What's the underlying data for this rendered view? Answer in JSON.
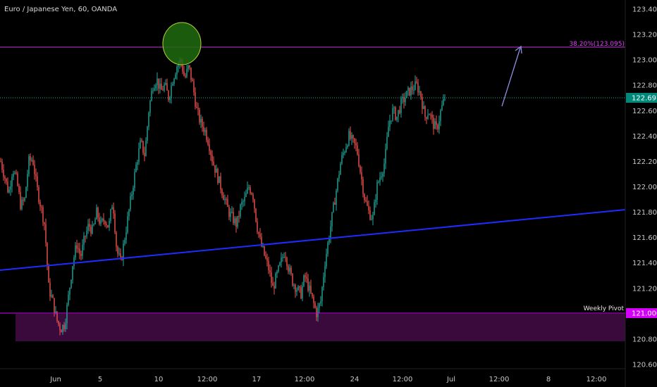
{
  "header": {
    "title": "Euro / Japanese Yen, 60, OANDA"
  },
  "colors": {
    "background": "#000000",
    "candle_up": "#26a69a",
    "candle_down": "#ef5350",
    "fib_line": "#c23ad6",
    "fib_label": "#e040fb",
    "dotted_line": "#26a69a",
    "trend_line": "#1f2bff",
    "pivot_line": "#d500f9",
    "pivot_zone": "#3a0a3c",
    "ellipse_fill": "#1e6b10",
    "ellipse_stroke": "#b6d23a",
    "arrow": "#8f8fe0",
    "price_label_bg": "#00897b",
    "pivot_label_bg": "#d500f9"
  },
  "chart_data": {
    "type": "candlestick",
    "title": "Euro / Japanese Yen, 60, OANDA",
    "y_ticks": [
      "123.400",
      "123.200",
      "123.000",
      "122.800",
      "122.600",
      "122.400",
      "122.200",
      "122.000",
      "121.800",
      "121.600",
      "121.400",
      "121.200",
      "121.000",
      "120.800",
      "120.600"
    ],
    "x_ticks": [
      "Jun",
      "5",
      "10",
      "12:00",
      "17",
      "12:00",
      "24",
      "12:00",
      "Jul",
      "12:00",
      "8",
      "12:00"
    ],
    "ylim": [
      120.54,
      123.45
    ],
    "last_price_label": "122.697",
    "last_price": 122.697,
    "fib_level": {
      "label": "38.20%(123.095)",
      "value": 123.095
    },
    "weekly_pivot": {
      "label": "Weekly Pivot",
      "value": 121.0,
      "price_label": "121.000"
    },
    "pivot_zone": [
      120.78,
      121.0
    ],
    "trend_line": {
      "start": 121.34,
      "end": 121.82
    },
    "close_path": [
      122.2,
      122.08,
      121.95,
      122.15,
      122.05,
      121.85,
      121.9,
      122.2,
      122.22,
      122.0,
      121.85,
      121.7,
      121.2,
      121.1,
      120.95,
      120.88,
      120.92,
      121.15,
      121.4,
      121.55,
      121.45,
      121.6,
      121.7,
      121.65,
      121.8,
      121.7,
      121.75,
      121.68,
      121.9,
      121.5,
      121.4,
      121.6,
      121.8,
      122.0,
      122.2,
      122.35,
      122.25,
      122.6,
      122.8,
      122.85,
      122.75,
      122.8,
      122.7,
      122.85,
      122.95,
      123.0,
      122.85,
      122.95,
      122.8,
      122.6,
      122.5,
      122.45,
      122.35,
      122.2,
      122.1,
      122.0,
      121.9,
      121.8,
      121.75,
      121.7,
      121.85,
      121.9,
      122.0,
      121.95,
      121.7,
      121.55,
      121.45,
      121.35,
      121.2,
      121.3,
      121.4,
      121.5,
      121.35,
      121.25,
      121.2,
      121.15,
      121.3,
      121.2,
      121.1,
      121.0,
      121.1,
      121.4,
      121.6,
      121.8,
      122.0,
      122.2,
      122.3,
      122.4,
      122.35,
      122.3,
      122.1,
      121.9,
      121.8,
      121.75,
      122.0,
      122.1,
      122.2,
      122.5,
      122.6,
      122.55,
      122.65,
      122.7,
      122.75,
      122.78,
      122.8,
      122.72,
      122.55,
      122.6,
      122.5,
      122.45,
      122.6,
      122.7
    ],
    "annotations": [
      "green ellipse around swing high",
      "arrow pointing up toward 38.20% level"
    ]
  }
}
